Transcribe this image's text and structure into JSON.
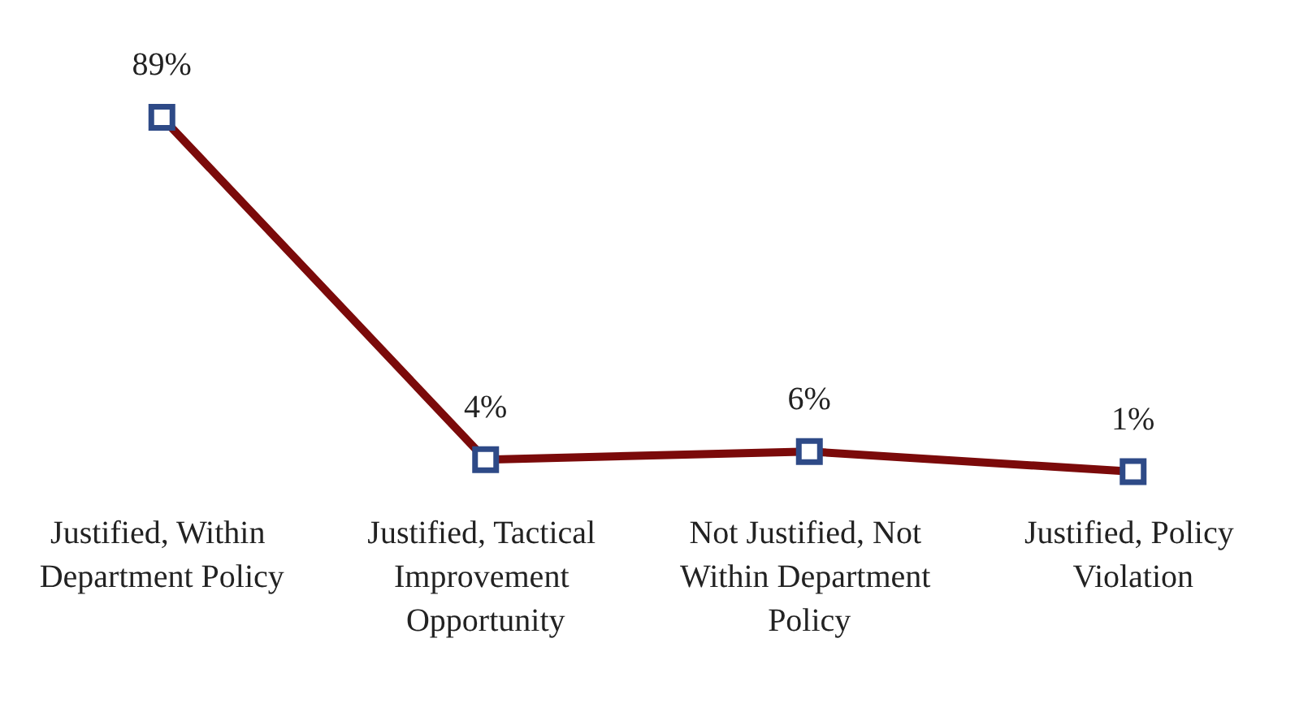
{
  "chart_data": {
    "type": "line",
    "categories": [
      "Justified, Within Department Policy",
      "Justified, Tactical Improvement Opportunity",
      "Not Justified, Not Within Department Policy",
      "Justified, Policy Violation"
    ],
    "series": [
      {
        "color": "#7b0a0a",
        "values": [
          89,
          4,
          6,
          1
        ],
        "value_labels": [
          "89%",
          "4%",
          "6%",
          "1%"
        ]
      }
    ],
    "marker": "square",
    "line_style": "solid"
  }
}
